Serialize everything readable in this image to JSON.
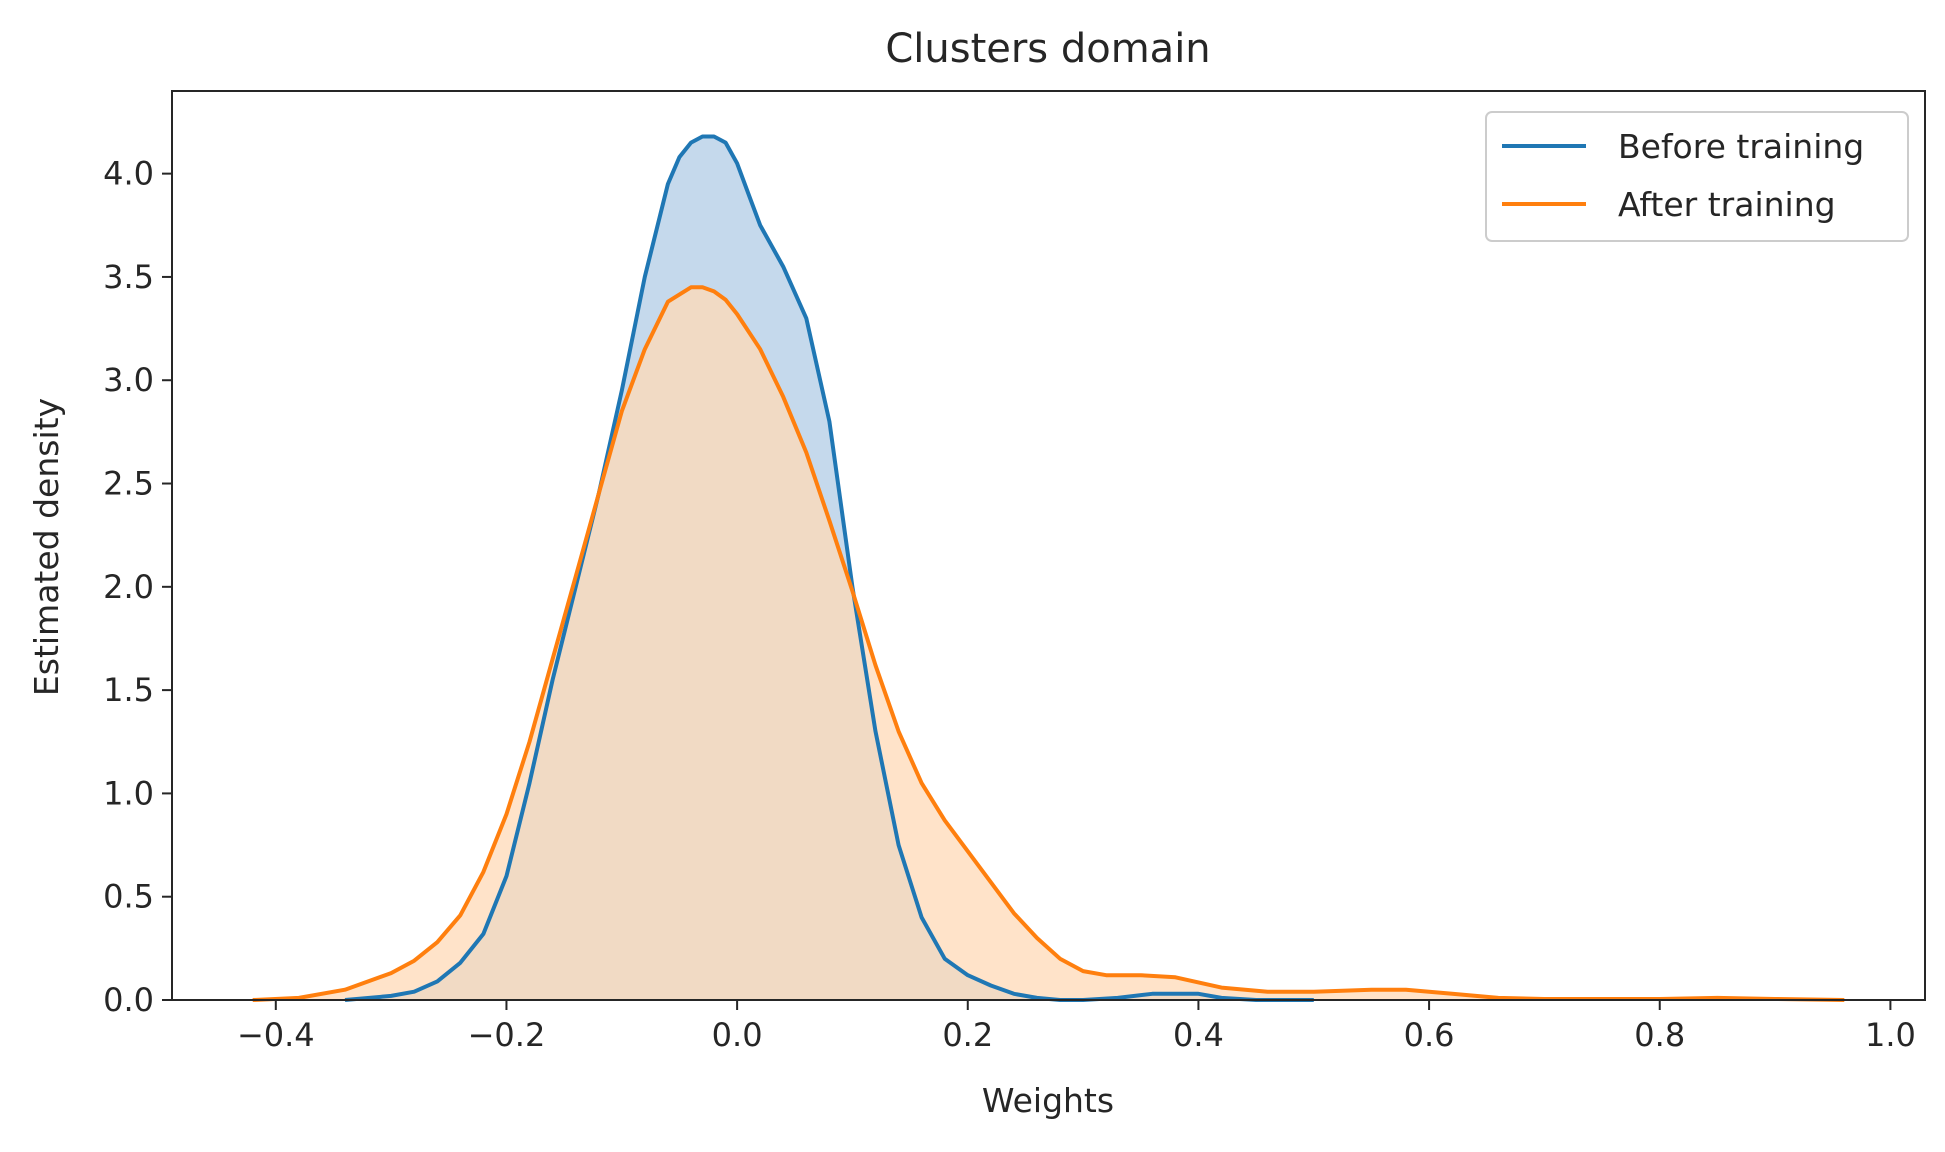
{
  "chart_data": {
    "type": "area",
    "title": "Clusters domain",
    "xlabel": "Weights",
    "ylabel": "Estimated density",
    "xlim": [
      -0.49,
      1.03
    ],
    "ylim": [
      0.0,
      4.4
    ],
    "x_ticks": [
      -0.4,
      -0.2,
      0.0,
      0.2,
      0.4,
      0.6,
      0.8,
      1.0
    ],
    "x_tick_labels": [
      "−0.4",
      "−0.2",
      "0.0",
      "0.2",
      "0.4",
      "0.6",
      "0.8",
      "1.0"
    ],
    "y_ticks": [
      0.0,
      0.5,
      1.0,
      1.5,
      2.0,
      2.5,
      3.0,
      3.5,
      4.0
    ],
    "y_tick_labels": [
      "0.0",
      "0.5",
      "1.0",
      "1.5",
      "2.0",
      "2.5",
      "3.0",
      "3.5",
      "4.0"
    ],
    "grid": false,
    "legend_position": "top-right",
    "series": [
      {
        "name": "Before training",
        "color": "#1f77b4",
        "fill_color": "#c5d9ec",
        "x": [
          -0.34,
          -0.3,
          -0.28,
          -0.26,
          -0.24,
          -0.22,
          -0.2,
          -0.18,
          -0.16,
          -0.14,
          -0.12,
          -0.1,
          -0.08,
          -0.06,
          -0.05,
          -0.04,
          -0.03,
          -0.02,
          -0.01,
          0.0,
          0.01,
          0.02,
          0.04,
          0.06,
          0.08,
          0.1,
          0.12,
          0.14,
          0.16,
          0.18,
          0.2,
          0.22,
          0.24,
          0.26,
          0.28,
          0.3,
          0.33,
          0.36,
          0.4,
          0.42,
          0.45,
          0.5
        ],
        "y": [
          0.0,
          0.02,
          0.04,
          0.09,
          0.18,
          0.32,
          0.6,
          1.05,
          1.55,
          2.0,
          2.45,
          2.95,
          3.5,
          3.95,
          4.08,
          4.15,
          4.18,
          4.18,
          4.15,
          4.05,
          3.9,
          3.75,
          3.55,
          3.3,
          2.8,
          2.0,
          1.3,
          0.75,
          0.4,
          0.2,
          0.12,
          0.07,
          0.03,
          0.01,
          0.0,
          0.0,
          0.01,
          0.03,
          0.03,
          0.01,
          0.0,
          0.0
        ]
      },
      {
        "name": "After training",
        "color": "#ff7f0e",
        "fill_color": "#ffd9b7",
        "x": [
          -0.42,
          -0.38,
          -0.34,
          -0.3,
          -0.28,
          -0.26,
          -0.24,
          -0.22,
          -0.2,
          -0.18,
          -0.16,
          -0.14,
          -0.12,
          -0.1,
          -0.08,
          -0.06,
          -0.04,
          -0.03,
          -0.02,
          -0.01,
          0.0,
          0.02,
          0.04,
          0.06,
          0.08,
          0.1,
          0.12,
          0.14,
          0.16,
          0.18,
          0.2,
          0.22,
          0.24,
          0.26,
          0.28,
          0.3,
          0.32,
          0.35,
          0.38,
          0.42,
          0.46,
          0.5,
          0.55,
          0.58,
          0.62,
          0.66,
          0.7,
          0.75,
          0.8,
          0.85,
          0.9,
          0.96
        ],
        "y": [
          0.0,
          0.01,
          0.05,
          0.13,
          0.19,
          0.28,
          0.41,
          0.62,
          0.9,
          1.25,
          1.65,
          2.05,
          2.45,
          2.85,
          3.15,
          3.38,
          3.45,
          3.45,
          3.43,
          3.39,
          3.32,
          3.15,
          2.92,
          2.65,
          2.32,
          1.98,
          1.62,
          1.3,
          1.05,
          0.87,
          0.72,
          0.57,
          0.42,
          0.3,
          0.2,
          0.14,
          0.12,
          0.12,
          0.11,
          0.06,
          0.04,
          0.04,
          0.05,
          0.05,
          0.03,
          0.01,
          0.005,
          0.005,
          0.005,
          0.01,
          0.005,
          0.0
        ]
      }
    ]
  }
}
